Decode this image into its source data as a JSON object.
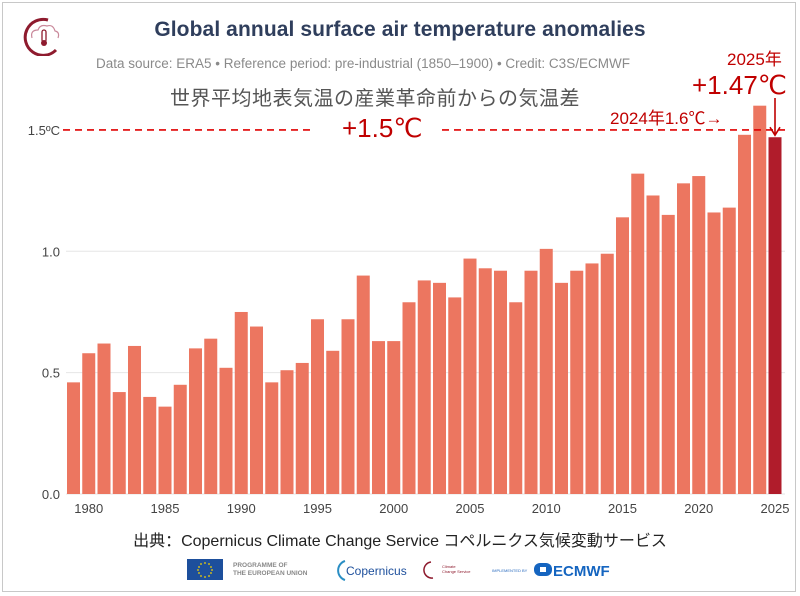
{
  "header": {
    "title": "Global annual surface air temperature anomalies",
    "subtitle": "Data source: ERA5 • Reference period: pre-industrial (1850–1900) • Credit: C3S/ECMWF",
    "jp_title": "世界平均地表気温の産業革命前からの気温差",
    "logo_icon": "climate-change-service-icon"
  },
  "annotations": {
    "year_2025": "2025年",
    "value_2025": "+1.47℃",
    "label_2024": "2024年1.6℃→",
    "threshold_label": "+1.5℃",
    "threshold_axis_label": "1.5ºC",
    "arrow_down": "↓"
  },
  "footer": {
    "source": "出典：Copernicus Climate Change Service コペルニクス気候変動サービス",
    "logos": {
      "eu_text_1": "PROGRAMME OF",
      "eu_text_2": "THE EUROPEAN UNION",
      "copernicus": "Copernicus",
      "copernicus_sub": "Europe's eyes on Earth",
      "c3s_1": "Climate",
      "c3s_2": "Change Service",
      "implemented_by": "IMPLEMENTED BY",
      "ecmwf": "ECMWF"
    }
  },
  "colors": {
    "bar": "#ec7660",
    "bar_highlight": "#b01c2b",
    "threshold": "#e00000",
    "annotation": "#c00000",
    "title": "#2f3e5c",
    "grid": "#e6e6e6"
  },
  "chart_data": {
    "type": "bar",
    "title": "Global annual surface air temperature anomalies",
    "xlabel": "",
    "ylabel": "",
    "ylim": [
      0,
      1.5
    ],
    "yticks": [
      "0.0",
      "0.5",
      "1.0",
      "1.5ºC"
    ],
    "ytick_values": [
      0,
      0.5,
      1.0,
      1.5
    ],
    "xticks": [
      "1980",
      "1985",
      "1990",
      "1995",
      "2000",
      "2005",
      "2010",
      "2015",
      "2020",
      "2025"
    ],
    "grid": true,
    "threshold": 1.5,
    "highlight_category": "2025",
    "categories": [
      "1979",
      "1980",
      "1981",
      "1982",
      "1983",
      "1984",
      "1985",
      "1986",
      "1987",
      "1988",
      "1989",
      "1990",
      "1991",
      "1992",
      "1993",
      "1994",
      "1995",
      "1996",
      "1997",
      "1998",
      "1999",
      "2000",
      "2001",
      "2002",
      "2003",
      "2004",
      "2005",
      "2006",
      "2007",
      "2008",
      "2009",
      "2010",
      "2011",
      "2012",
      "2013",
      "2014",
      "2015",
      "2016",
      "2017",
      "2018",
      "2019",
      "2020",
      "2021",
      "2022",
      "2023",
      "2024",
      "2025"
    ],
    "values": [
      0.46,
      0.58,
      0.62,
      0.42,
      0.61,
      0.4,
      0.36,
      0.45,
      0.6,
      0.64,
      0.52,
      0.75,
      0.69,
      0.46,
      0.51,
      0.54,
      0.72,
      0.59,
      0.72,
      0.9,
      0.63,
      0.63,
      0.79,
      0.88,
      0.87,
      0.81,
      0.97,
      0.93,
      0.92,
      0.79,
      0.92,
      1.01,
      0.87,
      0.92,
      0.95,
      0.99,
      1.14,
      1.32,
      1.23,
      1.15,
      1.28,
      1.31,
      1.16,
      1.18,
      1.48,
      1.6,
      1.47
    ]
  }
}
